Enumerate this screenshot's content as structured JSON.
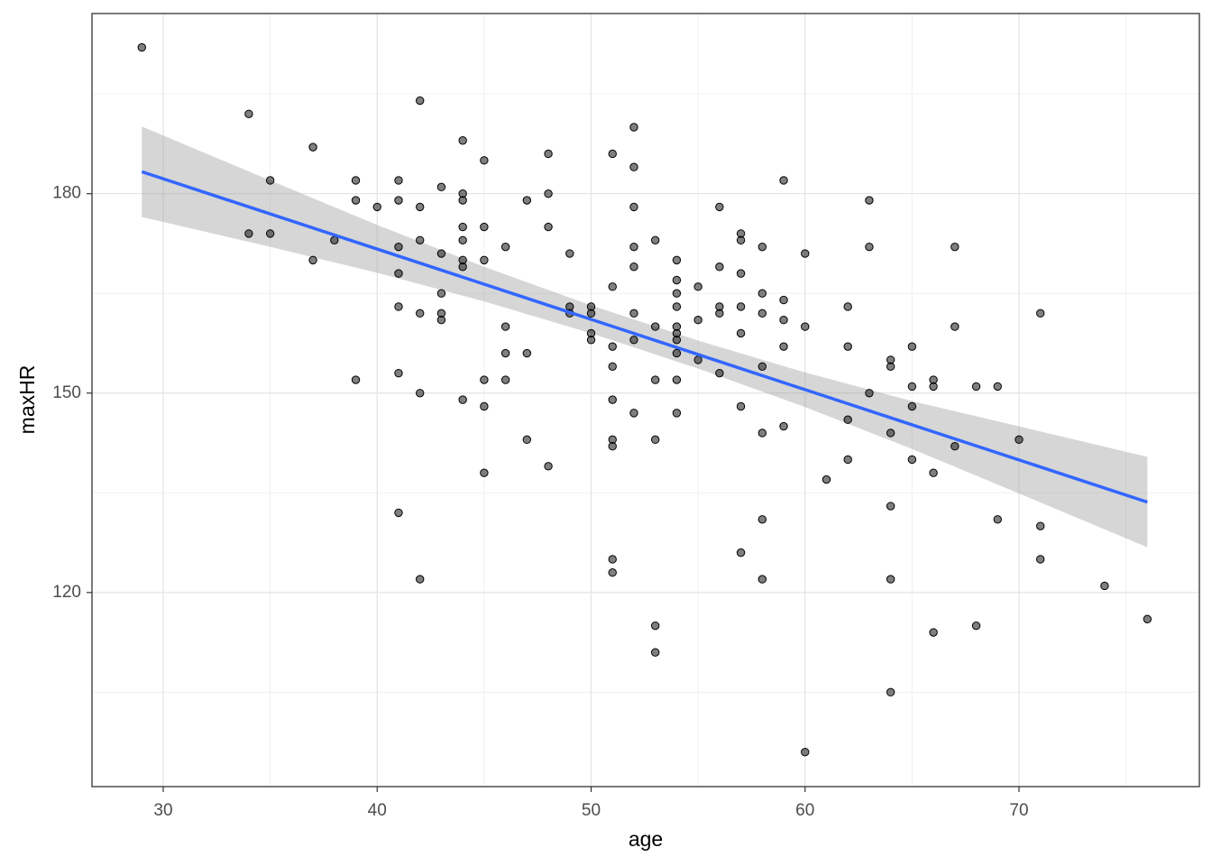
{
  "chart_data": {
    "type": "scatter",
    "x_label": "age",
    "y_label": "maxHR",
    "xlim": [
      26.67,
      78.43
    ],
    "ylim": [
      90.8,
      207.1
    ],
    "xticks": [
      30,
      40,
      50,
      60,
      70
    ],
    "yticks": [
      120,
      150,
      180
    ],
    "grid": true,
    "point_color": "#000000",
    "series": [
      {
        "color": "#000000",
        "x": [
          29,
          34,
          34,
          35,
          35,
          37,
          37,
          38,
          39,
          39,
          39,
          40,
          41,
          41,
          41,
          41,
          41,
          41,
          41,
          42,
          42,
          42,
          42,
          42,
          42,
          43,
          43,
          43,
          43,
          43,
          44,
          44,
          44,
          44,
          44,
          44,
          44,
          44,
          45,
          45,
          45,
          45,
          45,
          45,
          46,
          46,
          46,
          46,
          47,
          47,
          47,
          48,
          48,
          48,
          48,
          49,
          49,
          49,
          50,
          50,
          50,
          50,
          51,
          51,
          51,
          51,
          51,
          51,
          51,
          51,
          51,
          52,
          52,
          52,
          52,
          52,
          52,
          52,
          52,
          53,
          53,
          53,
          53,
          53,
          53,
          54,
          54,
          54,
          54,
          54,
          54,
          54,
          54,
          54,
          54,
          55,
          55,
          55,
          56,
          56,
          56,
          56,
          56,
          57,
          57,
          57,
          57,
          57,
          57,
          57,
          58,
          58,
          58,
          58,
          58,
          58,
          58,
          59,
          59,
          59,
          59,
          59,
          60,
          60,
          60,
          61,
          62,
          62,
          62,
          62,
          63,
          63,
          63,
          64,
          64,
          64,
          64,
          64,
          64,
          65,
          65,
          65,
          65,
          66,
          66,
          66,
          66,
          67,
          67,
          67,
          68,
          68,
          69,
          69,
          70,
          71,
          71,
          71,
          74,
          76
        ],
        "y": [
          202,
          192,
          174,
          182,
          174,
          187,
          170,
          173,
          182,
          179,
          152,
          178,
          182,
          179,
          172,
          168,
          163,
          153,
          132,
          194,
          178,
          173,
          162,
          150,
          122,
          181,
          171,
          165,
          162,
          161,
          188,
          180,
          179,
          175,
          173,
          170,
          169,
          149,
          185,
          175,
          170,
          152,
          148,
          138,
          172,
          160,
          156,
          152,
          179,
          156,
          143,
          186,
          180,
          175,
          139,
          171,
          163,
          162,
          163,
          162,
          159,
          158,
          186,
          166,
          157,
          154,
          149,
          143,
          142,
          125,
          123,
          190,
          184,
          178,
          172,
          169,
          162,
          158,
          147,
          173,
          160,
          152,
          143,
          115,
          111,
          170,
          167,
          165,
          163,
          160,
          159,
          158,
          156,
          152,
          147,
          166,
          161,
          155,
          178,
          169,
          163,
          162,
          153,
          174,
          173,
          168,
          163,
          159,
          148,
          126,
          172,
          165,
          162,
          154,
          144,
          131,
          122,
          182,
          164,
          161,
          157,
          145,
          171,
          160,
          96,
          137,
          163,
          157,
          146,
          140,
          179,
          172,
          150,
          155,
          154,
          144,
          133,
          122,
          105,
          157,
          151,
          148,
          140,
          152,
          151,
          138,
          114,
          172,
          160,
          142,
          151,
          115,
          151,
          131,
          143,
          162,
          130,
          125,
          121,
          116
        ]
      }
    ],
    "fit": {
      "color": "#3366FF",
      "x": [
        29,
        76
      ],
      "y": [
        183.3,
        133.6
      ]
    },
    "band": {
      "color": "#999999",
      "x": [
        29,
        35,
        40,
        45,
        50,
        55,
        60,
        65,
        70,
        76
      ],
      "lower": [
        176.5,
        172.0,
        168.1,
        163.8,
        159.0,
        153.7,
        147.9,
        141.6,
        134.9,
        126.8
      ],
      "upper": [
        190.1,
        182.0,
        175.3,
        169.0,
        163.2,
        157.9,
        153.1,
        148.8,
        145.0,
        140.4
      ]
    }
  }
}
